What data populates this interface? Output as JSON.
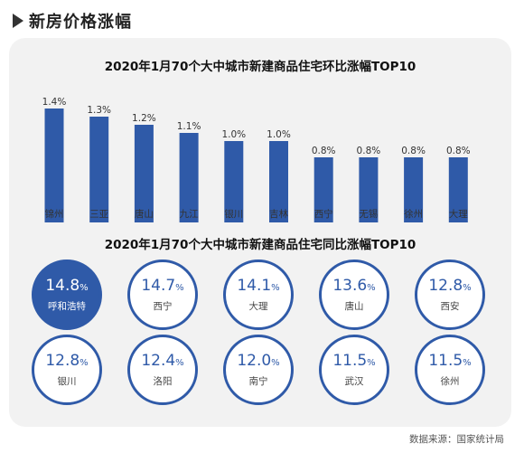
{
  "header": {
    "title": "新房价格涨幅"
  },
  "chart_data": [
    {
      "type": "bar",
      "title": "2020年1月70个大中城市新建商品住宅环比涨幅TOP10",
      "categories": [
        "锦州",
        "三亚",
        "唐山",
        "九江",
        "银川",
        "吉林",
        "西宁",
        "无锡",
        "徐州",
        "大理"
      ],
      "values": [
        1.4,
        1.3,
        1.2,
        1.1,
        1.0,
        1.0,
        0.8,
        0.8,
        0.8,
        0.8
      ],
      "value_labels": [
        "1.4%",
        "1.3%",
        "1.2%",
        "1.1%",
        "1.0%",
        "1.0%",
        "0.8%",
        "0.8%",
        "0.8%",
        "0.8%"
      ],
      "ylim": [
        0,
        1.4
      ],
      "bar_color": "#2f5aa8"
    },
    {
      "type": "table",
      "title": "2020年1月70个大中城市新建商品住宅同比涨幅TOP10",
      "items": [
        {
          "value": "14.8",
          "city": "呼和浩特"
        },
        {
          "value": "14.7",
          "city": "西宁"
        },
        {
          "value": "14.1",
          "city": "大理"
        },
        {
          "value": "13.6",
          "city": "唐山"
        },
        {
          "value": "12.8",
          "city": "西安"
        },
        {
          "value": "12.8",
          "city": "银川"
        },
        {
          "value": "12.4",
          "city": "洛阳"
        },
        {
          "value": "12.0",
          "city": "南宁"
        },
        {
          "value": "11.5",
          "city": "武汉"
        },
        {
          "value": "11.5",
          "city": "徐州"
        }
      ],
      "unit": "%",
      "highlight_color": "#2f5aa8"
    }
  ],
  "source": "数据来源：国家统计局"
}
